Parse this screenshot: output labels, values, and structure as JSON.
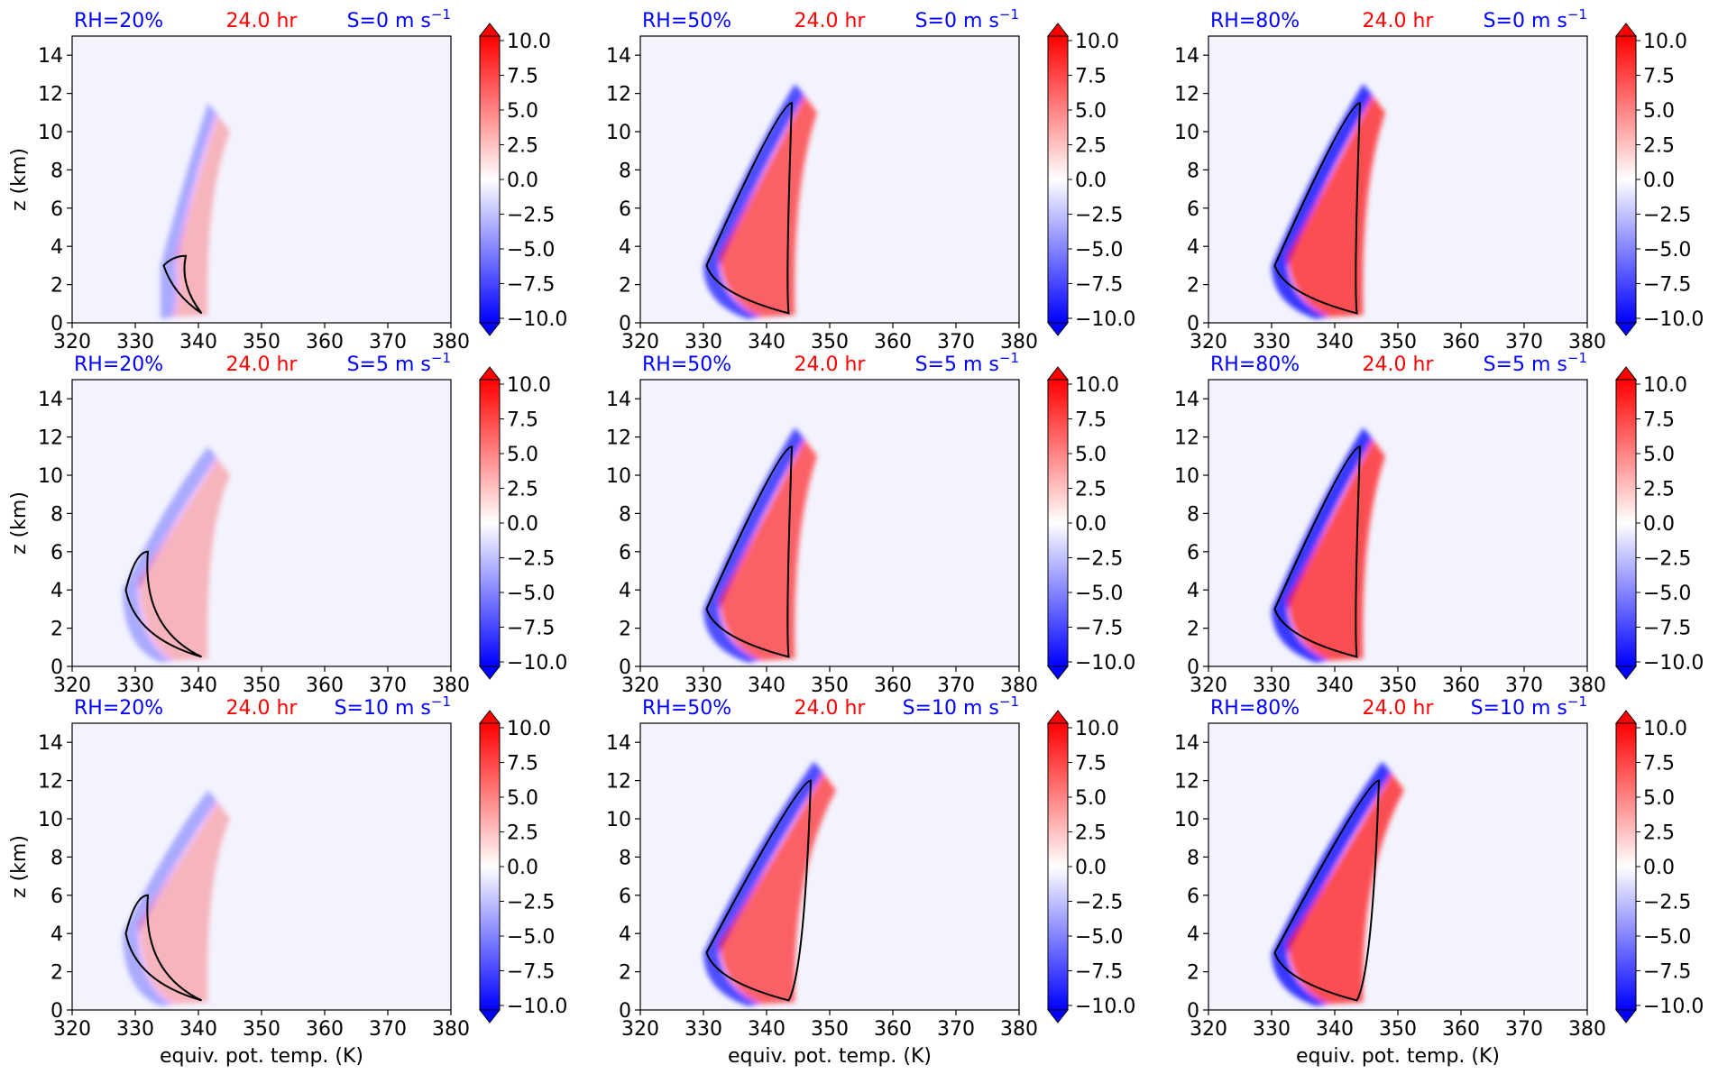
{
  "chart_data": {
    "type": "contour",
    "title": "",
    "xlabel": "equiv. pot. temp. (K)",
    "ylabel": "z (km)",
    "xlim": [
      320,
      380
    ],
    "ylim": [
      0,
      15
    ],
    "xticks": [
      "320",
      "330",
      "340",
      "350",
      "360",
      "370",
      "380"
    ],
    "yticks": [
      "0",
      "2",
      "4",
      "6",
      "8",
      "10",
      "12",
      "14"
    ],
    "time_label": "24.0 hr",
    "colorbar": {
      "range": [
        -10,
        10
      ],
      "ticks": [
        "−10.0",
        "−7.5",
        "−5.0",
        "−2.5",
        "0.0",
        "2.5",
        "5.0",
        "7.5",
        "10.0"
      ],
      "colormap": "bwr",
      "extend": "both"
    },
    "colors": {
      "negative": "#0000ff",
      "positive": "#ff0000",
      "contour": "#000000",
      "rh_label": "#0000ff",
      "time_label": "#ff0000",
      "shear_label": "#0000ff"
    },
    "panels": [
      {
        "rh_label": "RH=20%",
        "shear_label": "S=0 m s",
        "shear_exp": "−1",
        "rh": 20,
        "shear": 0
      },
      {
        "rh_label": "RH=50%",
        "shear_label": "S=0 m s",
        "shear_exp": "−1",
        "rh": 50,
        "shear": 0
      },
      {
        "rh_label": "RH=80%",
        "shear_label": "S=0 m s",
        "shear_exp": "−1",
        "rh": 80,
        "shear": 0
      },
      {
        "rh_label": "RH=20%",
        "shear_label": "S=5 m s",
        "shear_exp": "−1",
        "rh": 20,
        "shear": 5
      },
      {
        "rh_label": "RH=50%",
        "shear_label": "S=5 m s",
        "shear_exp": "−1",
        "rh": 50,
        "shear": 5
      },
      {
        "rh_label": "RH=80%",
        "shear_label": "S=5 m s",
        "shear_exp": "−1",
        "rh": 80,
        "shear": 5
      },
      {
        "rh_label": "RH=20%",
        "shear_label": "S=10 m s",
        "shear_exp": "−1",
        "rh": 20,
        "shear": 10
      },
      {
        "rh_label": "RH=50%",
        "shear_label": "S=10 m s",
        "shear_exp": "−1",
        "rh": 50,
        "shear": 10
      },
      {
        "rh_label": "RH=80%",
        "shear_label": "S=10 m s",
        "shear_exp": "−1",
        "rh": 80,
        "shear": 10
      }
    ]
  }
}
